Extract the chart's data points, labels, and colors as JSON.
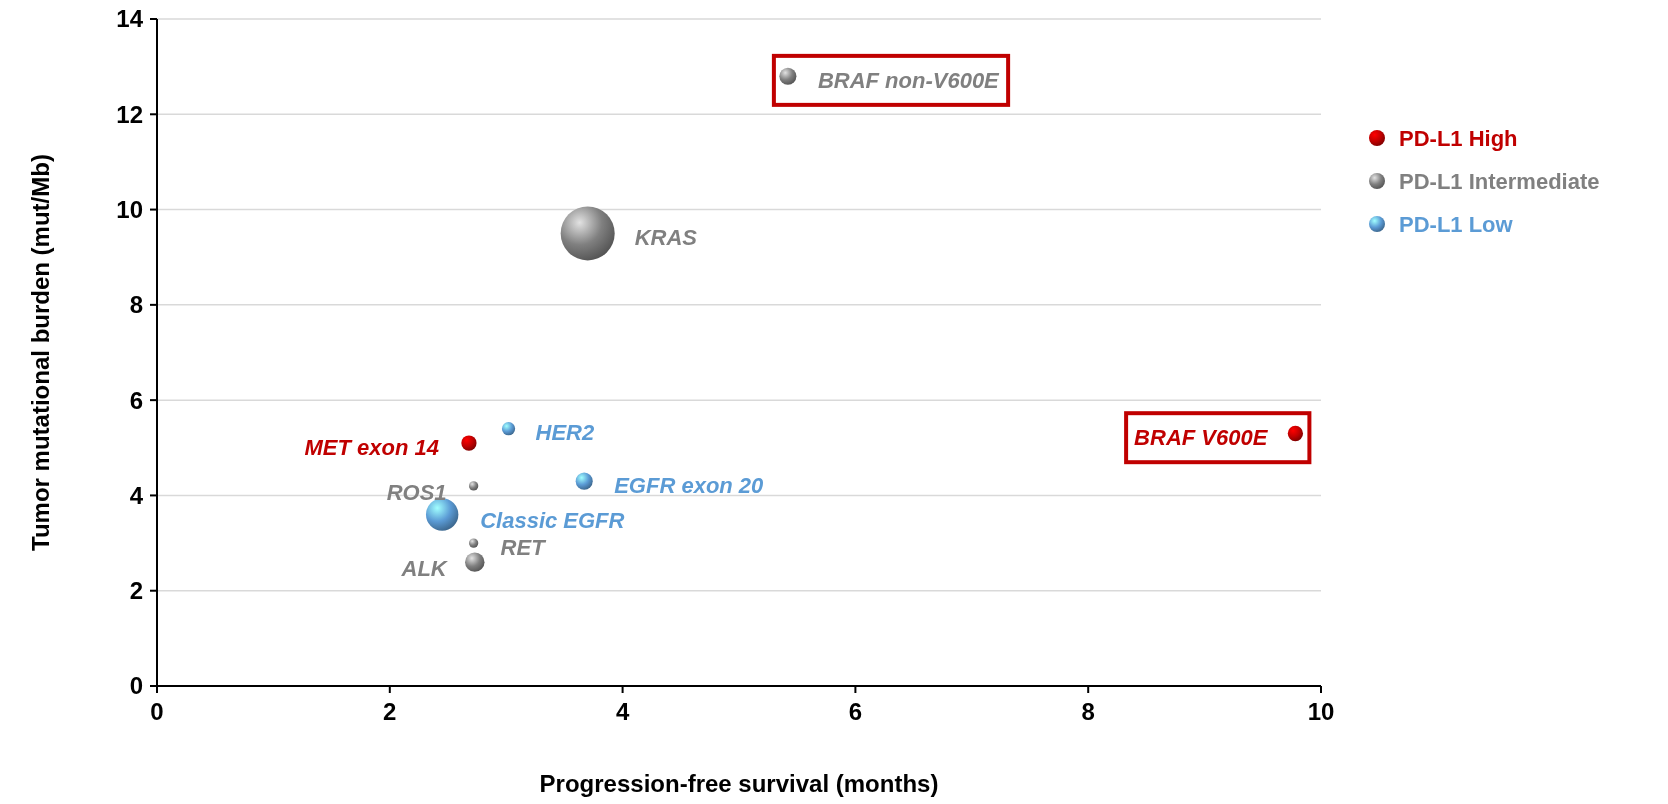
{
  "chart_data": {
    "type": "bubble",
    "xlabel": "Progression-free survival (months)",
    "ylabel": "Tumor mutational burden (mut/Mb)",
    "xlim": [
      0,
      10
    ],
    "xticks": [
      0,
      2,
      4,
      6,
      8,
      10
    ],
    "ylim": [
      0,
      14
    ],
    "yticks": [
      0,
      2,
      4,
      6,
      8,
      10,
      12,
      14
    ],
    "grid": "y",
    "legend": "right",
    "marker": "circle",
    "series": [
      {
        "name": "PD-L1 High",
        "color": "#c00000",
        "x": [
          2.68,
          9.78
        ],
        "values": [
          5.1,
          5.3
        ],
        "sizes": [
          0.08,
          0.08
        ]
      },
      {
        "name": "PD-L1 Intermediate",
        "color": "#808080",
        "x": [
          5.42,
          3.7,
          2.72,
          2.72,
          2.73
        ],
        "values": [
          12.8,
          9.5,
          4.2,
          3.0,
          2.6
        ],
        "sizes": [
          0.1,
          1,
          0.03,
          0.03,
          0.13
        ]
      },
      {
        "name": "PD-L1 Low",
        "color": "#5b9bd5",
        "x": [
          3.02,
          3.67,
          2.45
        ],
        "values": [
          5.4,
          4.3,
          3.6
        ],
        "sizes": [
          0.06,
          0.1,
          0.36
        ]
      }
    ],
    "annotations": [
      {
        "text": "BRAF non-V600E",
        "x": 5.42,
        "y": 12.8
      },
      {
        "text": "KRAS",
        "x": 3.7,
        "y": 9.5
      },
      {
        "text": "MET exon 14",
        "x": 2.68,
        "y": 5.1
      },
      {
        "text": "HER2",
        "x": 3.02,
        "y": 5.4
      },
      {
        "text": "ROS1",
        "x": 2.72,
        "y": 4.2
      },
      {
        "text": "EGFR exon 20",
        "x": 3.67,
        "y": 4.3
      },
      {
        "text": "Classic EGFR",
        "x": 2.45,
        "y": 3.6
      },
      {
        "text": "RET",
        "x": 2.72,
        "y": 3.0
      },
      {
        "text": "ALK",
        "x": 2.73,
        "y": 2.6
      },
      {
        "text": "BRAF V600E",
        "x": 9.78,
        "y": 5.3
      }
    ]
  }
}
